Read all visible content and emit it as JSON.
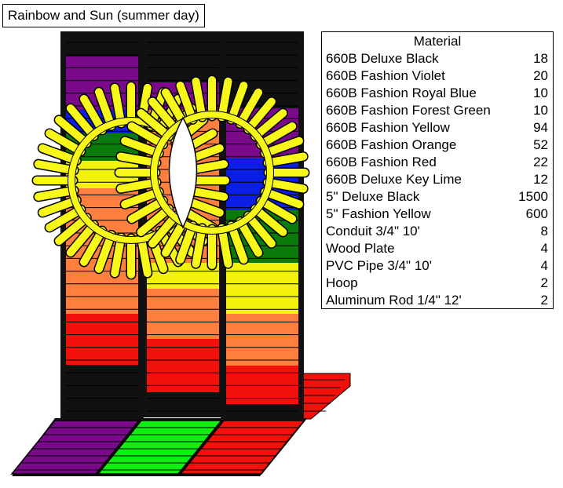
{
  "title": "Rainbow and Sun (summer day)",
  "materials_table": {
    "header": "Material",
    "rows": [
      {
        "name": "660B Deluxe Black",
        "qty": "18"
      },
      {
        "name": "660B Fashion Violet",
        "qty": "20"
      },
      {
        "name": "660B Fashion Royal Blue",
        "qty": "10"
      },
      {
        "name": "660B Fashion Forest Green",
        "qty": "10"
      },
      {
        "name": "660B Fashion Yellow",
        "qty": "94"
      },
      {
        "name": "660B Fashion Orange",
        "qty": "52"
      },
      {
        "name": "660B Fashion Red",
        "qty": "22"
      },
      {
        "name": "660B Deluxe Key Lime",
        "qty": "12"
      },
      {
        "name": "5\" Deluxe Black",
        "qty": "1500"
      },
      {
        "name": "5\" Fashion Yellow",
        "qty": "600"
      },
      {
        "name": "Conduit 3/4\" 10'",
        "qty": "8"
      },
      {
        "name": "Wood Plate",
        "qty": "4"
      },
      {
        "name": "PVC Pipe 3/4\" 10'",
        "qty": "4"
      },
      {
        "name": "Hoop",
        "qty": "2"
      },
      {
        "name": "Aluminum Rod 1/4\" 12'",
        "qty": "2"
      }
    ]
  },
  "colors": {
    "black": "#111111",
    "violet": "#7a0a8a",
    "blue": "#0a1ee6",
    "green": "#0a7a0a",
    "yellow": "#f2f20a",
    "orange": "#ff7f3f",
    "red": "#f2100a",
    "lime": "#10f010",
    "sun": "#f7f71a",
    "outline": "#000000"
  }
}
